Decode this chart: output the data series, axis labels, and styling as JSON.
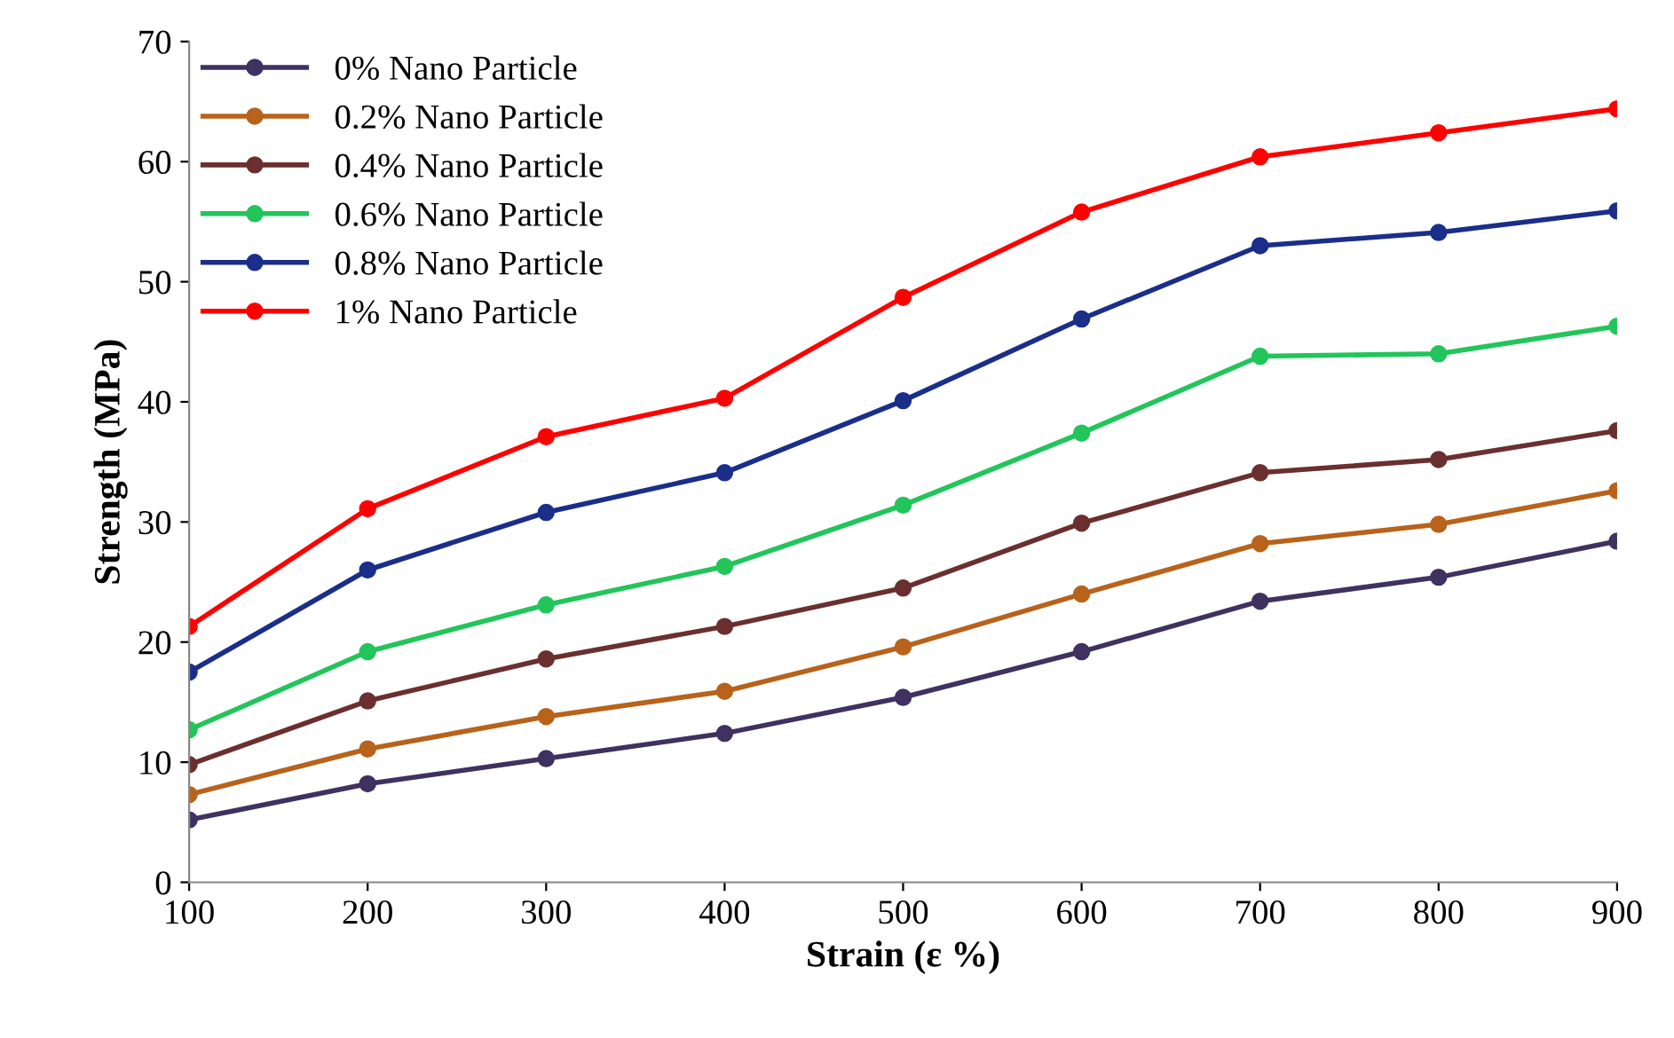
{
  "chart_data": {
    "type": "line",
    "xlabel": "Strain (ε %)",
    "ylabel": "Strength (MPa)",
    "x": [
      100,
      200,
      300,
      400,
      500,
      600,
      700,
      800,
      900
    ],
    "xlim": [
      100,
      900
    ],
    "xticks": [
      100,
      200,
      300,
      400,
      500,
      600,
      700,
      800,
      900
    ],
    "ylim": [
      0,
      70
    ],
    "yticks": [
      0,
      10,
      20,
      30,
      40,
      50,
      60,
      70
    ],
    "grid": false,
    "legend": "top left",
    "marker": "circle",
    "line_style": "solid",
    "series": [
      {
        "name": "0% Nano Particle",
        "color": "#3f3160",
        "values": [
          5.2,
          8.2,
          10.3,
          12.4,
          15.4,
          19.2,
          23.4,
          25.4,
          28.4
        ]
      },
      {
        "name": "0.2% Nano Particle",
        "color": "#b8621b",
        "values": [
          7.3,
          11.1,
          13.8,
          15.9,
          19.6,
          24.0,
          28.2,
          29.8,
          32.6
        ]
      },
      {
        "name": "0.4% Nano Particle",
        "color": "#6b2f2f",
        "values": [
          9.8,
          15.1,
          18.6,
          21.3,
          24.5,
          29.9,
          34.1,
          35.2,
          37.6
        ]
      },
      {
        "name": "0.6% Nano Particle",
        "color": "#22c55a",
        "values": [
          12.7,
          19.2,
          23.1,
          26.3,
          31.4,
          37.4,
          43.8,
          44.0,
          46.3
        ]
      },
      {
        "name": "0.8% Nano Particle",
        "color": "#1a2e8a",
        "values": [
          17.5,
          26.0,
          30.8,
          34.1,
          40.1,
          46.9,
          53.0,
          54.1,
          55.9
        ]
      },
      {
        "name": "1% Nano Particle",
        "color": "#ff0000",
        "values": [
          21.3,
          31.1,
          37.1,
          40.3,
          48.7,
          55.8,
          60.4,
          62.4,
          64.4
        ]
      }
    ]
  }
}
